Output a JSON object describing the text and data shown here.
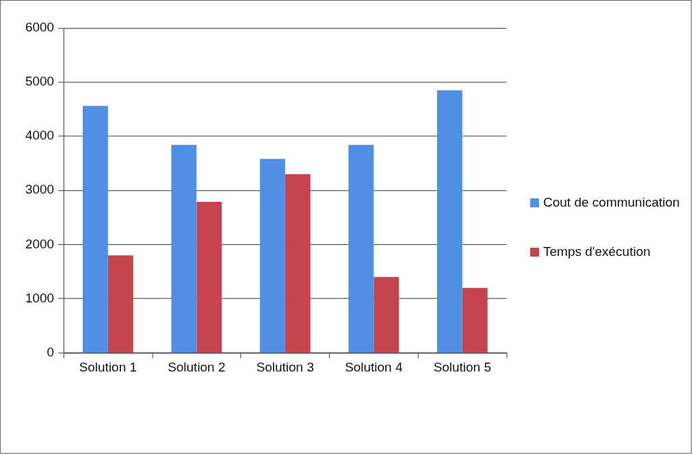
{
  "chart_data": {
    "type": "bar",
    "categories": [
      "Solution 1",
      "Solution 2",
      "Solution 3",
      "Solution 4",
      "Solution 5"
    ],
    "series": [
      {
        "name": "Cout de communication",
        "color": "#4f8fe6",
        "values": [
          4560,
          3840,
          3580,
          3840,
          4850
        ]
      },
      {
        "name": "Temps d'exécution",
        "color": "#c5444f",
        "values": [
          1800,
          2790,
          3300,
          1400,
          1200
        ]
      }
    ],
    "ylim": [
      0,
      6000
    ],
    "yticks": [
      0,
      1000,
      2000,
      3000,
      4000,
      5000,
      6000
    ],
    "grid": "y",
    "legend": "right"
  }
}
